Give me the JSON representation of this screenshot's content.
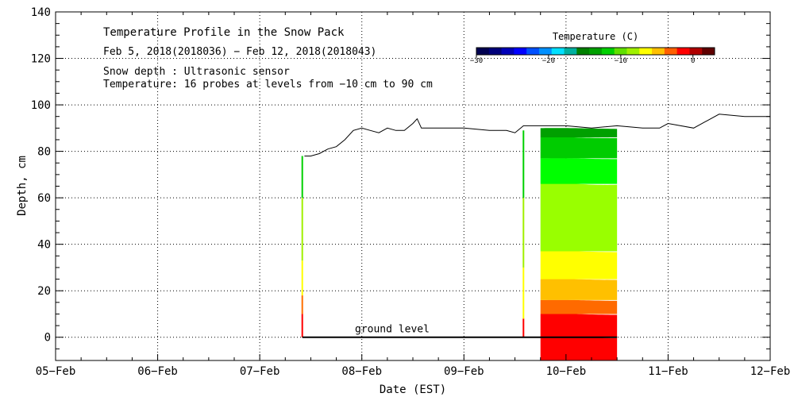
{
  "chart_data": {
    "type": "area",
    "title": "Temperature Profile in the Snow Pack",
    "subtitle": "Feb  5, 2018(2018036) − Feb 12, 2018(2018043)",
    "notes": [
      "Snow depth : Ultrasonic sensor",
      "Temperature: 16 probes at levels from −10 cm to 90 cm"
    ],
    "xlabel": "Date (EST)",
    "ylabel": "Depth, cm",
    "xlim": [
      "2018-02-05",
      "2018-02-12"
    ],
    "ylim": [
      -10,
      140
    ],
    "x_ticks": [
      "05−Feb",
      "06−Feb",
      "07−Feb",
      "08−Feb",
      "09−Feb",
      "10−Feb",
      "11−Feb",
      "12−Feb"
    ],
    "y_ticks": [
      "0",
      "20",
      "40",
      "60",
      "80",
      "100",
      "120",
      "140"
    ],
    "y_tick_values": [
      0,
      20,
      40,
      60,
      80,
      100,
      120,
      140
    ],
    "grid": "dotted",
    "annotation": {
      "text": "ground level",
      "y": 0,
      "x_start": "2018-02-07T10:00",
      "x_end": "2018-02-10T12:00"
    },
    "colorbar": {
      "title": "Temperature (C)",
      "range": [
        -30,
        3
      ],
      "tick_labels": [
        "−30",
        "−20",
        "−10",
        "0"
      ],
      "tick_values": [
        -30,
        -20,
        -10,
        0
      ],
      "colors": [
        "#000050",
        "#00007a",
        "#0000b8",
        "#0000ff",
        "#0050ff",
        "#0090ff",
        "#00e0ff",
        "#00b0a0",
        "#008000",
        "#00a000",
        "#00d000",
        "#60e000",
        "#a0f000",
        "#ffff00",
        "#ffc000",
        "#ff6000",
        "#ff0000",
        "#b00000",
        "#600000"
      ]
    },
    "snow_depth_series": {
      "name": "Snow depth",
      "x": [
        "2018-02-07T10:30",
        "2018-02-07T12:00",
        "2018-02-07T14:00",
        "2018-02-07T16:00",
        "2018-02-07T18:00",
        "2018-02-07T20:00",
        "2018-02-07T22:00",
        "2018-02-08T00:00",
        "2018-02-08T02:00",
        "2018-02-08T04:00",
        "2018-02-08T06:00",
        "2018-02-08T08:00",
        "2018-02-08T10:00",
        "2018-02-08T12:00",
        "2018-02-08T13:00",
        "2018-02-08T14:00",
        "2018-02-08T16:00",
        "2018-02-08T18:00",
        "2018-02-08T20:00",
        "2018-02-09T00:00",
        "2018-02-09T06:00",
        "2018-02-09T10:00",
        "2018-02-09T12:00",
        "2018-02-09T14:00",
        "2018-02-09T18:00",
        "2018-02-10T00:00",
        "2018-02-10T06:00",
        "2018-02-10T12:00",
        "2018-02-10T18:00",
        "2018-02-10T22:00",
        "2018-02-11T00:00",
        "2018-02-11T06:00",
        "2018-02-11T12:00",
        "2018-02-11T18:00",
        "2018-02-12T00:00"
      ],
      "y": [
        78,
        78,
        79,
        81,
        82,
        85,
        89,
        90,
        89,
        88,
        90,
        89,
        89,
        92,
        94,
        90,
        90,
        90,
        90,
        90,
        89,
        89,
        88,
        91,
        91,
        91,
        90,
        91,
        90,
        90,
        92,
        90,
        96,
        95,
        95
      ]
    },
    "probe_profile_strip": {
      "name": "Probe column at the start of the record",
      "x": "2018-02-07T10:00",
      "bands": [
        {
          "from": 0,
          "to": 10,
          "color": "#ff0000"
        },
        {
          "from": 10,
          "to": 18,
          "color": "#ff7000"
        },
        {
          "from": 18,
          "to": 33,
          "color": "#ffff00"
        },
        {
          "from": 33,
          "to": 60,
          "color": "#a0f000"
        },
        {
          "from": 60,
          "to": 78,
          "color": "#00d000"
        }
      ]
    },
    "probe_profile_strip_2": {
      "name": "Second probe column",
      "x": "2018-02-09T14:00",
      "bands": [
        {
          "from": 0,
          "to": 8,
          "color": "#ff0000"
        },
        {
          "from": 8,
          "to": 30,
          "color": "#ffff00"
        },
        {
          "from": 30,
          "to": 60,
          "color": "#a0f000"
        },
        {
          "from": 60,
          "to": 89,
          "color": "#00d000"
        }
      ]
    },
    "temperature_contours": {
      "x_range": [
        "2018-02-09T18:00",
        "2018-02-10T12:00"
      ],
      "top_depth": 90,
      "bands": [
        {
          "from": -10,
          "to": 0,
          "temp": 1.5,
          "color": "#ff0000"
        },
        {
          "from": 0,
          "to": 10,
          "temp": 1.5,
          "color": "#ff0000"
        },
        {
          "from": 10,
          "to": 16,
          "temp": 0.5,
          "color": "#ff6a00"
        },
        {
          "from": 16,
          "to": 25,
          "temp": -1,
          "color": "#ffc000"
        },
        {
          "from": 25,
          "to": 37,
          "temp": -2.5,
          "color": "#ffff00"
        },
        {
          "from": 37,
          "to": 66,
          "temp": -5,
          "color": "#99ff00"
        },
        {
          "from": 66,
          "to": 77,
          "temp": -7,
          "color": "#00ff00"
        },
        {
          "from": 77,
          "to": 86,
          "temp": -8.5,
          "color": "#00cc00"
        },
        {
          "from": 86,
          "to": 90,
          "temp": -9.5,
          "color": "#00a000"
        }
      ]
    }
  }
}
